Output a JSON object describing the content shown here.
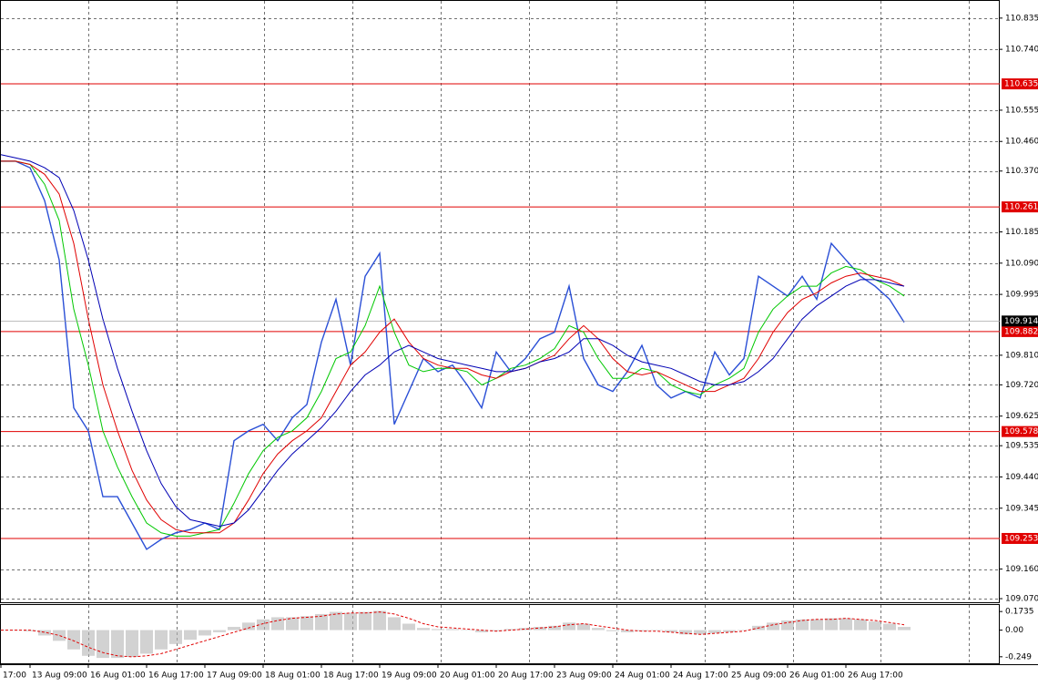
{
  "chart_data": [
    {
      "type": "line",
      "categories": [
        "17:00",
        null,
        "13 Aug 09:00",
        null,
        null,
        null,
        "16 Aug 01:00",
        null,
        null,
        null,
        "16 Aug 17:00",
        null,
        null,
        null,
        "17 Aug 09:00",
        null,
        null,
        null,
        "18 Aug 01:00",
        null,
        null,
        null,
        "18 Aug 17:00",
        null,
        null,
        null,
        "19 Aug 09:00",
        null,
        null,
        null,
        "20 Aug 01:00",
        null,
        null,
        null,
        "20 Aug 17:00",
        null,
        null,
        null,
        "23 Aug 09:00",
        null,
        null,
        null,
        "24 Aug 01:00",
        null,
        null,
        null,
        "24 Aug 17:00",
        null,
        null,
        null,
        "25 Aug 09:00",
        null,
        null,
        null,
        "26 Aug 01:00",
        null,
        null,
        null,
        "26 Aug 17:00",
        null,
        null,
        null,
        null
      ],
      "series": [
        {
          "color": "#2a4fd6",
          "values": [
            110.4,
            110.4,
            110.38,
            110.28,
            110.1,
            109.65,
            109.58,
            109.38,
            109.38,
            109.3,
            109.22,
            109.25,
            109.27,
            109.28,
            109.3,
            109.28,
            109.55,
            109.58,
            109.6,
            109.55,
            109.62,
            109.66,
            109.85,
            109.98,
            109.78,
            110.05,
            110.12,
            109.6,
            109.7,
            109.8,
            109.76,
            109.78,
            109.72,
            109.65,
            109.82,
            109.76,
            109.8,
            109.86,
            109.88,
            110.02,
            109.8,
            109.72,
            109.7,
            109.76,
            109.84,
            109.72,
            109.68,
            109.7,
            109.68,
            109.82,
            109.75,
            109.8,
            110.05,
            110.02,
            109.99,
            110.05,
            109.98,
            110.15,
            110.1,
            110.05,
            110.02,
            109.98,
            109.91
          ]
        },
        {
          "color": "#00c800",
          "values": [
            110.4,
            110.4,
            110.39,
            110.33,
            110.22,
            109.95,
            109.78,
            109.58,
            109.47,
            109.38,
            109.3,
            109.27,
            109.26,
            109.26,
            109.27,
            109.28,
            109.36,
            109.45,
            109.52,
            109.56,
            109.58,
            109.62,
            109.7,
            109.8,
            109.82,
            109.9,
            110.02,
            109.88,
            109.78,
            109.76,
            109.77,
            109.77,
            109.76,
            109.72,
            109.74,
            109.77,
            109.78,
            109.8,
            109.83,
            109.9,
            109.88,
            109.8,
            109.74,
            109.74,
            109.77,
            109.76,
            109.72,
            109.7,
            109.69,
            109.72,
            109.74,
            109.77,
            109.88,
            109.95,
            109.99,
            110.02,
            110.02,
            110.06,
            110.08,
            110.07,
            110.04,
            110.02,
            109.99
          ]
        },
        {
          "color": "#e00000",
          "values": [
            110.4,
            110.4,
            110.39,
            110.36,
            110.3,
            110.15,
            109.92,
            109.72,
            109.58,
            109.46,
            109.37,
            109.31,
            109.28,
            109.27,
            109.27,
            109.27,
            109.3,
            109.37,
            109.45,
            109.51,
            109.55,
            109.58,
            109.62,
            109.7,
            109.78,
            109.82,
            109.88,
            109.92,
            109.85,
            109.8,
            109.78,
            109.77,
            109.77,
            109.75,
            109.74,
            109.76,
            109.77,
            109.79,
            109.81,
            109.86,
            109.9,
            109.86,
            109.8,
            109.76,
            109.75,
            109.76,
            109.74,
            109.72,
            109.7,
            109.7,
            109.72,
            109.74,
            109.8,
            109.88,
            109.94,
            109.98,
            110.0,
            110.03,
            110.05,
            110.06,
            110.05,
            110.04,
            110.02
          ]
        },
        {
          "color": "#0000b4",
          "values": [
            110.42,
            110.41,
            110.4,
            110.38,
            110.35,
            110.25,
            110.1,
            109.92,
            109.77,
            109.64,
            109.52,
            109.42,
            109.35,
            109.31,
            109.3,
            109.29,
            109.3,
            109.34,
            109.4,
            109.46,
            109.51,
            109.55,
            109.59,
            109.64,
            109.7,
            109.75,
            109.78,
            109.82,
            109.84,
            109.82,
            109.8,
            109.79,
            109.78,
            109.77,
            109.76,
            109.76,
            109.77,
            109.79,
            109.8,
            109.82,
            109.86,
            109.86,
            109.84,
            109.81,
            109.79,
            109.78,
            109.77,
            109.75,
            109.73,
            109.72,
            109.72,
            109.73,
            109.76,
            109.8,
            109.86,
            109.92,
            109.96,
            109.99,
            110.02,
            110.04,
            110.04,
            110.03,
            110.02
          ]
        }
      ],
      "ylim": [
        109.059,
        110.89
      ],
      "yticks": [
        110.835,
        {
          "value": 110.74,
          "label": "110.740"
        },
        110.555,
        {
          "value": 110.46,
          "label": "110.460"
        },
        {
          "value": 110.37,
          "label": "110.370"
        },
        110.185,
        {
          "value": 110.09,
          "label": "110.090"
        },
        109.995,
        {
          "value": 109.81,
          "label": "109.810"
        },
        {
          "value": 109.72,
          "label": "109.720"
        },
        109.625,
        109.535,
        {
          "value": 109.44,
          "label": "109.440"
        },
        109.345,
        {
          "value": 109.16,
          "label": "109.160"
        },
        {
          "value": 109.07,
          "label": "109.070"
        }
      ],
      "levels": [
        110.635,
        110.261,
        109.882,
        109.578,
        109.253
      ],
      "level_color": "#e00000",
      "current_price": 109.914,
      "grid": true
    },
    {
      "type": "bar",
      "series": [
        {
          "color": "#b4b4b4",
          "values": [
            0,
            0,
            -0.01,
            -0.05,
            -0.1,
            -0.18,
            -0.24,
            -0.26,
            -0.26,
            -0.25,
            -0.22,
            -0.18,
            -0.13,
            -0.09,
            -0.05,
            -0.02,
            0.03,
            0.07,
            0.1,
            0.12,
            0.12,
            0.13,
            0.15,
            0.17,
            0.16,
            0.17,
            0.18,
            0.12,
            0.06,
            0.02,
            0.01,
            0.01,
            0,
            -0.02,
            -0.01,
            0.01,
            0.02,
            0.03,
            0.04,
            0.07,
            0.06,
            0.02,
            -0.01,
            -0.02,
            -0.01,
            0,
            -0.02,
            -0.04,
            -0.04,
            -0.03,
            -0.02,
            0,
            0.04,
            0.07,
            0.09,
            0.1,
            0.1,
            0.11,
            0.11,
            0.1,
            0.08,
            0.06,
            0.03
          ]
        },
        {
          "color": "#e00000",
          "values": [
            0,
            0,
            0,
            -0.02,
            -0.05,
            -0.1,
            -0.16,
            -0.21,
            -0.24,
            -0.25,
            -0.24,
            -0.22,
            -0.18,
            -0.14,
            -0.1,
            -0.06,
            -0.02,
            0.02,
            0.06,
            0.09,
            0.11,
            0.12,
            0.13,
            0.15,
            0.16,
            0.16,
            0.17,
            0.15,
            0.11,
            0.06,
            0.03,
            0.02,
            0.01,
            0,
            -0.01,
            0,
            0.01,
            0.02,
            0.03,
            0.05,
            0.06,
            0.04,
            0.02,
            0,
            -0.01,
            -0.01,
            -0.02,
            -0.03,
            -0.04,
            -0.03,
            -0.02,
            -0.01,
            0.02,
            0.05,
            0.07,
            0.09,
            0.1,
            0.1,
            0.11,
            0.1,
            0.09,
            0.07,
            0.05
          ]
        }
      ],
      "ylim": [
        -0.31,
        0.243
      ],
      "yticks": [
        0.1735,
        {
          "value": 0,
          "label": "0.00"
        },
        -0.249
      ]
    }
  ]
}
